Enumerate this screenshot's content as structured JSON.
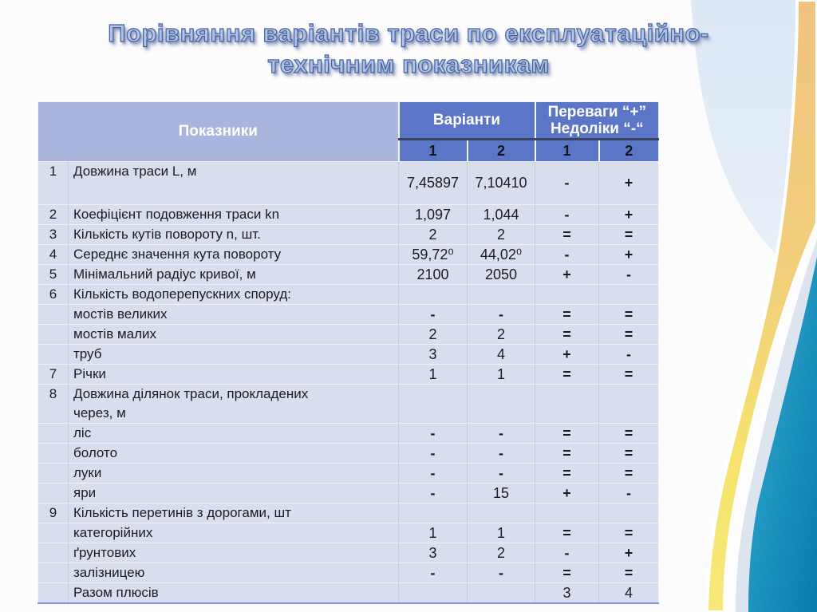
{
  "slide": {
    "title_line1": "Порівняння варіантів траси по експлуатаційно-",
    "title_line2": "технічним показникам"
  },
  "table": {
    "header": {
      "indicators": "Показники",
      "variants": "Варіанти",
      "pros_cons": "Переваги “+”\nНедоліки “-“",
      "sub": [
        "1",
        "2",
        "1",
        "2"
      ]
    },
    "rows": [
      {
        "num": "1",
        "name": "Довжина траси  L, м",
        "v1": "7,45897",
        "v2": "7,10410",
        "p1": "-",
        "p2": "+"
      },
      {
        "num": "2",
        "name": "Коефіцієнт подовження траси   kn",
        "v1": "1,097",
        "v2": "1,044",
        "p1": "-",
        "p2": "+"
      },
      {
        "num": "3",
        "name": "Кількість кутів повороту  n, шт.",
        "v1": "2",
        "v2": "2",
        "p1": "=",
        "p2": "="
      },
      {
        "num": "4",
        "name": "Середнє значення кута повороту",
        "v1": "59,72⁰",
        "v2": "44,02⁰",
        "p1": "-",
        "p2": "+"
      },
      {
        "num": "5",
        "name": "Мінімальний радіус кривої, м",
        "v1": "2100",
        "v2": "2050",
        "p1": "+",
        "p2": "-"
      },
      {
        "num": "6",
        "name": "Кількість водоперепускних споруд:",
        "v1": "",
        "v2": "",
        "p1": "",
        "p2": ""
      },
      {
        "num": "",
        "name": "мостів великих",
        "v1": "-",
        "v2": "-",
        "p1": "=",
        "p2": "="
      },
      {
        "num": "",
        "name": "мостів малих",
        "v1": "2",
        "v2": "2",
        "p1": "=",
        "p2": "="
      },
      {
        "num": "",
        "name": "труб",
        "v1": "3",
        "v2": "4",
        "p1": "+",
        "p2": "-"
      },
      {
        "num": "7",
        "name": "Річки",
        "v1": "1",
        "v2": "1",
        "p1": "=",
        "p2": "="
      },
      {
        "num": "8",
        "name": "Довжина ділянок траси, прокладених\nчерез, м",
        "v1": "",
        "v2": "",
        "p1": "",
        "p2": ""
      },
      {
        "num": "",
        "name": "ліс",
        "v1": "-",
        "v2": "-",
        "p1": "=",
        "p2": "="
      },
      {
        "num": "",
        "name": "болото",
        "v1": "-",
        "v2": "-",
        "p1": "=",
        "p2": "="
      },
      {
        "num": "",
        "name": "луки",
        "v1": "-",
        "v2": "-",
        "p1": "=",
        "p2": "="
      },
      {
        "num": "",
        "name": "яри",
        "v1": "-",
        "v2": "15",
        "p1": "+",
        "p2": "-"
      },
      {
        "num": "9",
        "name": "Кількість перетинів з дорогами, шт",
        "v1": "",
        "v2": "",
        "p1": "",
        "p2": ""
      },
      {
        "num": "",
        "name": "категорійних",
        "v1": "1",
        "v2": "1",
        "p1": "=",
        "p2": "="
      },
      {
        "num": "",
        "name": "ґрунтових",
        "v1": "3",
        "v2": "2",
        "p1": "-",
        "p2": "+"
      },
      {
        "num": "",
        "name": "залізницею",
        "v1": "-",
        "v2": "-",
        "p1": "=",
        "p2": "="
      },
      {
        "num": "",
        "name": "Разом плюсів",
        "v1": "",
        "v2": "",
        "p1": "3",
        "p2": "4"
      }
    ]
  },
  "colors": {
    "header_blue": "#5b76c6",
    "header_light_blue": "#a9b5dc",
    "cell_lavender": "#d9deef",
    "title_outline_blue": "#44619f",
    "wave_light_blue": "#dde9f4",
    "wave_tan": "#f0c480",
    "wave_yellow": "#f6e36e",
    "wave_teal_dark": "#0b7aa9",
    "wave_teal_light": "#31aed4"
  }
}
